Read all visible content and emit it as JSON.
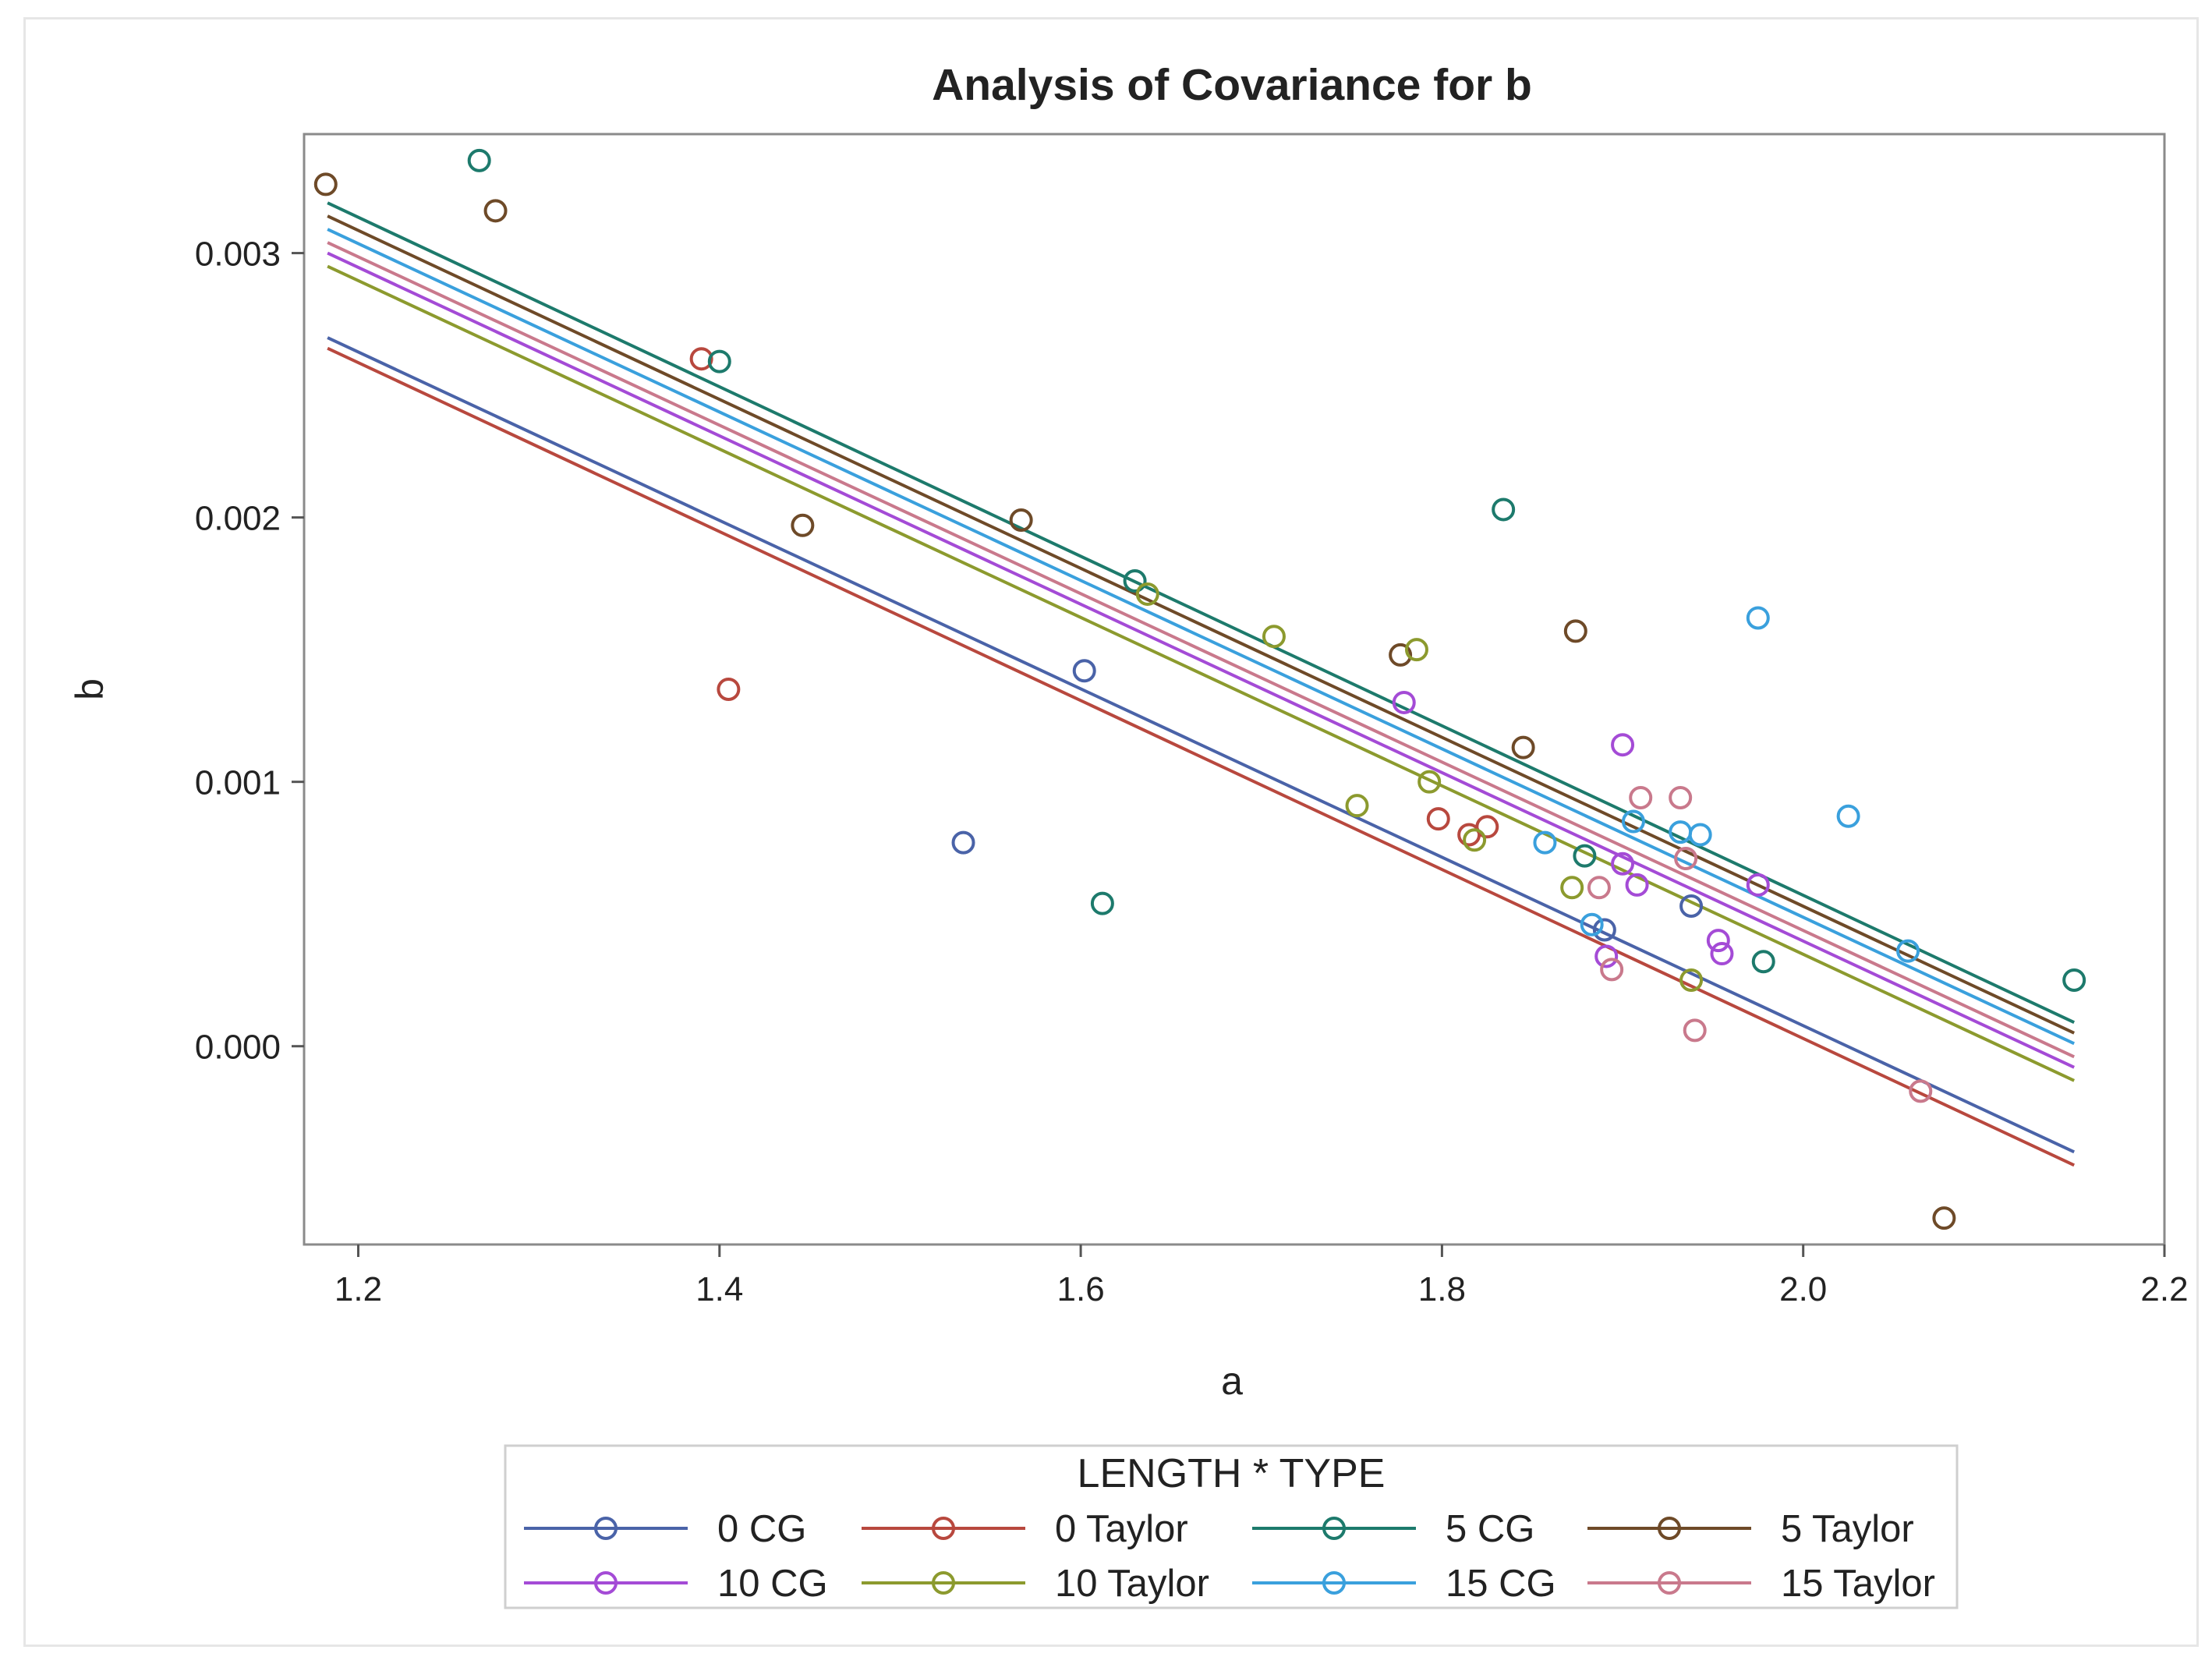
{
  "chart_data": {
    "type": "scatter",
    "title": "Analysis of Covariance for b",
    "xlabel": "a",
    "ylabel": "b",
    "xlim": [
      1.17,
      2.2
    ],
    "ylim": [
      -0.00075,
      0.00345
    ],
    "x_ticks": [
      1.2,
      1.4,
      1.6,
      1.8,
      2.0,
      2.2
    ],
    "x_tick_labels": [
      "1.2",
      "1.4",
      "1.6",
      "1.8",
      "2.0",
      "2.2"
    ],
    "y_ticks": [
      0.0,
      0.001,
      0.002,
      0.003
    ],
    "y_tick_labels": [
      "0.000",
      "0.001",
      "0.002",
      "0.003"
    ],
    "grid": false,
    "legend": {
      "title": "LENGTH * TYPE",
      "position": "bottom"
    },
    "fit_line_x_range": [
      1.183,
      2.15
    ],
    "series": [
      {
        "name": "0 CG",
        "color": "#4a63a8",
        "line": [
          [
            1.183,
            0.00268
          ],
          [
            2.15,
            -0.0004
          ]
        ],
        "points": [
          [
            1.602,
            0.00142
          ],
          [
            1.535,
            0.00077
          ],
          [
            1.89,
            0.00044
          ],
          [
            1.938,
            0.00053
          ]
        ]
      },
      {
        "name": "0 Taylor",
        "color": "#b8483e",
        "line": [
          [
            1.183,
            0.00264
          ],
          [
            2.15,
            -0.00045
          ]
        ],
        "points": [
          [
            1.39,
            0.0026
          ],
          [
            1.405,
            0.00135
          ],
          [
            1.798,
            0.00086
          ],
          [
            1.825,
            0.00083
          ],
          [
            1.815,
            0.0008
          ]
        ]
      },
      {
        "name": "5 CG",
        "color": "#1d7a6c",
        "line": [
          [
            1.183,
            0.00319
          ],
          [
            2.15,
            9e-05
          ]
        ],
        "points": [
          [
            1.267,
            0.00335
          ],
          [
            1.4,
            0.00259
          ],
          [
            1.63,
            0.00176
          ],
          [
            1.834,
            0.00203
          ],
          [
            1.612,
            0.00054
          ],
          [
            1.879,
            0.00072
          ],
          [
            1.978,
            0.00032
          ],
          [
            2.15,
            0.00025
          ]
        ]
      },
      {
        "name": "5 Taylor",
        "color": "#6e4a28",
        "line": [
          [
            1.183,
            0.00314
          ],
          [
            2.15,
            5e-05
          ]
        ],
        "points": [
          [
            1.182,
            0.00326
          ],
          [
            1.276,
            0.00316
          ],
          [
            1.446,
            0.00197
          ],
          [
            1.567,
            0.00199
          ],
          [
            1.777,
            0.00148
          ],
          [
            1.874,
            0.00157
          ],
          [
            1.845,
            0.00113
          ],
          [
            2.078,
            -0.00065
          ]
        ]
      },
      {
        "name": "10 CG",
        "color": "#a44bd6",
        "line": [
          [
            1.183,
            0.003
          ],
          [
            2.15,
            -8e-05
          ]
        ],
        "points": [
          [
            1.779,
            0.0013
          ],
          [
            1.9,
            0.00114
          ],
          [
            1.9,
            0.00069
          ],
          [
            1.908,
            0.00061
          ],
          [
            1.975,
            0.00061
          ],
          [
            1.891,
            0.00034
          ],
          [
            1.953,
            0.0004
          ],
          [
            1.955,
            0.00035
          ]
        ]
      },
      {
        "name": "10 Taylor",
        "color": "#8c9a2e",
        "line": [
          [
            1.183,
            0.00295
          ],
          [
            2.15,
            -0.00013
          ]
        ],
        "points": [
          [
            1.637,
            0.00171
          ],
          [
            1.707,
            0.00155
          ],
          [
            1.786,
            0.0015
          ],
          [
            1.793,
            0.001
          ],
          [
            1.753,
            0.00091
          ],
          [
            1.818,
            0.00078
          ],
          [
            1.872,
            0.0006
          ],
          [
            1.938,
            0.00025
          ]
        ]
      },
      {
        "name": "15 CG",
        "color": "#3aa0dd",
        "line": [
          [
            1.183,
            0.00309
          ],
          [
            2.15,
            1e-05
          ]
        ],
        "points": [
          [
            1.975,
            0.00162
          ],
          [
            2.025,
            0.00087
          ],
          [
            1.906,
            0.00085
          ],
          [
            1.932,
            0.00081
          ],
          [
            1.943,
            0.0008
          ],
          [
            1.857,
            0.00077
          ],
          [
            1.883,
            0.00046
          ],
          [
            2.058,
            0.00036
          ]
        ]
      },
      {
        "name": "15 Taylor",
        "color": "#c9798c",
        "line": [
          [
            1.183,
            0.00304
          ],
          [
            2.15,
            -4e-05
          ]
        ],
        "points": [
          [
            1.91,
            0.00094
          ],
          [
            1.932,
            0.00094
          ],
          [
            1.935,
            0.00071
          ],
          [
            1.887,
            0.0006
          ],
          [
            1.894,
            0.00029
          ],
          [
            1.94,
            6e-05
          ],
          [
            2.065,
            -0.00017
          ]
        ]
      }
    ]
  }
}
